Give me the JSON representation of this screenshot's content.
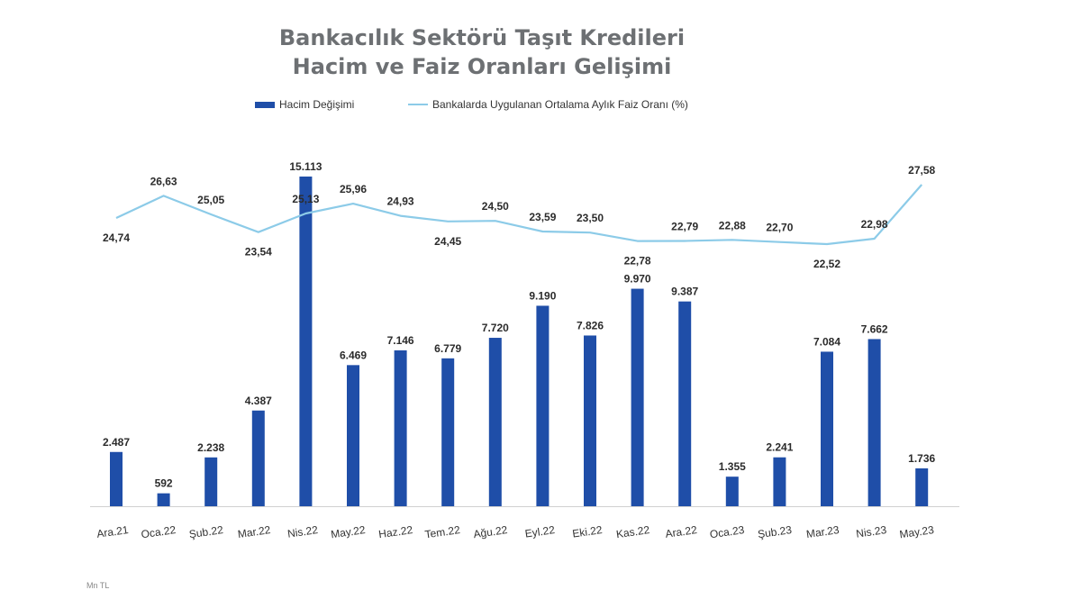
{
  "chart_data": {
    "type": "bar",
    "title": [
      "Bankacılık Sektörü Taşıt Kredileri",
      "Hacim ve Faiz Oranları Gelişimi"
    ],
    "categories": [
      "Ara.21",
      "Oca.22",
      "Şub.22",
      "Mar.22",
      "Nis.22",
      "May.22",
      "Haz.22",
      "Tem.22",
      "Ağu.22",
      "Eyl.22",
      "Eki.22",
      "Kas.22",
      "Ara.22",
      "Oca.23",
      "Şub.23",
      "Mar.23",
      "Nis.23",
      "May.23"
    ],
    "series": [
      {
        "name": "Hacim Değişimi",
        "type": "bar",
        "values": [
          2487,
          592,
          2238,
          4387,
          15113,
          6469,
          7146,
          6779,
          7720,
          9190,
          7826,
          9970,
          9387,
          1355,
          2241,
          7084,
          7662,
          1736
        ],
        "labels": [
          "2.487",
          "592",
          "2.238",
          "4.387",
          "15.113",
          "6.469",
          "7.146",
          "6.779",
          "7.720",
          "9.190",
          "7.826",
          "9.970",
          "9.387",
          "1.355",
          "2.241",
          "7.084",
          "7.662",
          "1.736"
        ],
        "color": "#1f4ea8"
      },
      {
        "name": "Bankalarda Uygulanan Ortalama Aylık Faiz Oranı (%)",
        "type": "line",
        "values": [
          24.74,
          26.63,
          25.05,
          23.54,
          25.13,
          25.96,
          24.93,
          24.45,
          24.5,
          23.59,
          23.5,
          22.78,
          22.79,
          22.88,
          22.7,
          22.52,
          22.98,
          27.58
        ],
        "labels": [
          "24,74",
          "26,63",
          "25,05",
          "23,54",
          "25,13",
          "25,96",
          "24,93",
          "24,45",
          "24,50",
          "23,59",
          "23,50",
          "22,78",
          "22,79",
          "22,88",
          "22,70",
          "22,52",
          "22,98",
          "27,58"
        ],
        "color": "#8ccbe8"
      }
    ],
    "xlabel": "",
    "ylabel": "",
    "ylim": [
      0,
      15113
    ],
    "y2lim": [
      22.52,
      27.58
    ],
    "grid": false,
    "legend_position": "top",
    "unit_note": "Mn TL"
  }
}
